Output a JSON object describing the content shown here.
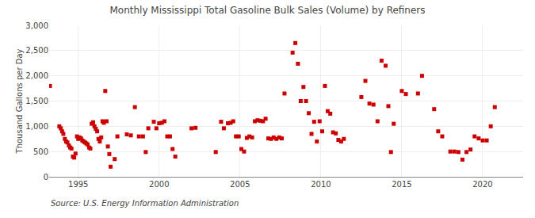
{
  "chart_data": {
    "type": "scatter",
    "title": "Monthly Mississippi Total Gasoline Bulk Sales (Volume) by Refiners",
    "ylabel": "Thousand Gallons per Day",
    "annotations": [
      "Source: U.S. Energy Information Administration"
    ],
    "color": "#cc0000",
    "marker": "square",
    "grid": true,
    "xlim": [
      1993.2,
      2022.5
    ],
    "xticks": [
      1995,
      2000,
      2005,
      2010,
      2015,
      2020
    ],
    "ylim": [
      0,
      3000
    ],
    "yticks": [
      0,
      500,
      {
        "value": 1000,
        "label": "1,000"
      },
      {
        "value": 1500,
        "label": "1,500"
      },
      {
        "value": 2000,
        "label": "2,000"
      },
      {
        "value": 2500,
        "label": "2,500"
      },
      {
        "value": 3000,
        "label": "3,000"
      }
    ],
    "x": [
      1993.25,
      1993.83,
      1993.92,
      1994.0,
      1994.08,
      1994.17,
      1994.25,
      1994.33,
      1994.42,
      1994.5,
      1994.58,
      1994.67,
      1994.75,
      1994.83,
      1994.92,
      1995.0,
      1995.08,
      1995.17,
      1995.25,
      1995.33,
      1995.42,
      1995.5,
      1995.58,
      1995.67,
      1995.75,
      1995.83,
      1995.92,
      1996.0,
      1996.08,
      1996.17,
      1996.25,
      1996.33,
      1996.42,
      1996.5,
      1996.58,
      1996.67,
      1996.75,
      1996.83,
      1996.92,
      1997.0,
      1997.25,
      1997.42,
      1998.0,
      1998.25,
      1998.5,
      1998.75,
      1999.0,
      1999.17,
      1999.33,
      1999.67,
      1999.83,
      2000.0,
      2000.17,
      2000.33,
      2000.5,
      2000.67,
      2000.83,
      2001.0,
      2002.0,
      2002.25,
      2003.5,
      2003.83,
      2004.0,
      2004.25,
      2004.42,
      2004.58,
      2004.75,
      2004.92,
      2005.08,
      2005.25,
      2005.42,
      2005.58,
      2005.75,
      2005.92,
      2006.08,
      2006.25,
      2006.42,
      2006.58,
      2006.75,
      2006.92,
      2007.08,
      2007.25,
      2007.42,
      2007.58,
      2007.75,
      2008.25,
      2008.42,
      2008.58,
      2008.75,
      2008.92,
      2009.08,
      2009.25,
      2009.42,
      2009.58,
      2009.75,
      2009.92,
      2010.08,
      2010.25,
      2010.42,
      2010.58,
      2010.75,
      2010.92,
      2011.08,
      2011.25,
      2011.42,
      2012.5,
      2012.75,
      2013.0,
      2013.25,
      2013.5,
      2013.75,
      2014.0,
      2014.17,
      2014.33,
      2014.5,
      2015.0,
      2015.25,
      2016.0,
      2016.25,
      2017.0,
      2017.25,
      2017.5,
      2018.0,
      2018.25,
      2018.5,
      2018.75,
      2019.0,
      2019.25,
      2019.5,
      2019.75,
      2020.0,
      2020.25,
      2020.5,
      2020.75
    ],
    "values": [
      1800,
      1000,
      960,
      900,
      850,
      750,
      700,
      680,
      620,
      580,
      560,
      400,
      380,
      460,
      800,
      750,
      780,
      760,
      720,
      700,
      680,
      660,
      640,
      580,
      560,
      1050,
      1080,
      1000,
      950,
      900,
      750,
      700,
      780,
      1100,
      1070,
      1700,
      1100,
      600,
      450,
      200,
      350,
      800,
      840,
      820,
      1380,
      800,
      800,
      490,
      960,
      1090,
      960,
      1060,
      1070,
      1100,
      800,
      800,
      550,
      400,
      960,
      970,
      490,
      1090,
      960,
      1060,
      1070,
      1100,
      800,
      800,
      550,
      500,
      770,
      800,
      780,
      1100,
      1120,
      1110,
      1100,
      1150,
      760,
      750,
      780,
      750,
      780,
      760,
      1650,
      2460,
      2650,
      2240,
      1500,
      1780,
      1500,
      1260,
      850,
      1090,
      700,
      1100,
      900,
      1800,
      1300,
      1250,
      880,
      860,
      730,
      700,
      750,
      1580,
      1900,
      1450,
      1430,
      1100,
      2300,
      2200,
      1400,
      490,
      1050,
      1700,
      1640,
      1650,
      2000,
      1340,
      900,
      800,
      500,
      500,
      490,
      340,
      490,
      540,
      800,
      760,
      720,
      720,
      1000,
      1380
    ]
  }
}
